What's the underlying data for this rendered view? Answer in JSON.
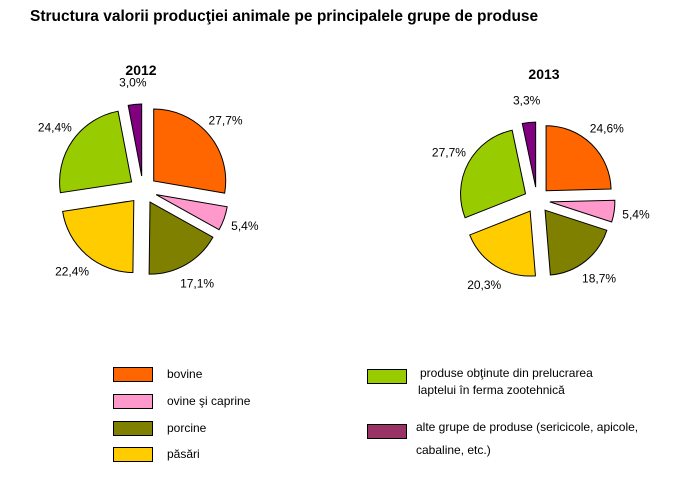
{
  "chart_data": {
    "type": "pie",
    "title": "Structura valorii producţiei animale pe principalele grupe de produse",
    "categories": [
      "bovine",
      "ovine şi caprine",
      "porcine",
      "păsări",
      "produse obţinute din prelucrarea laptelui în ferma zootehnică",
      "alte grupe de produse (sericicole, apicole, cabaline, etc.)"
    ],
    "colors": [
      "#ff6600",
      "#ff99cc",
      "#808000",
      "#ffcc00",
      "#99cc00",
      "#800080"
    ],
    "legend_colors": [
      "#ff6600",
      "#ff99cc",
      "#808000",
      "#ffcc00",
      "#99cc00",
      "#993366"
    ],
    "pies": [
      {
        "title": "2012",
        "values": [
          27.7,
          5.4,
          17.1,
          22.4,
          24.4,
          3.0
        ],
        "labels": [
          "27,7%",
          "5,4%",
          "17,1%",
          "22,4%",
          "24,4%",
          "3,0%"
        ]
      },
      {
        "title": "2013",
        "values": [
          24.6,
          5.4,
          18.7,
          20.3,
          27.7,
          3.3
        ],
        "labels": [
          "24,6%",
          "5,4%",
          "18,7%",
          "20,3%",
          "27,7%",
          "3,3%"
        ]
      }
    ],
    "legend": {
      "items": [
        "bovine",
        "ovine şi caprine",
        "porcine",
        "păsări"
      ],
      "lapte_lines": [
        "produse obţinute din prelucrarea",
        "laptelui în ferma zootehnică"
      ],
      "alte_lines": [
        "alte grupe de produse (sericicole, apicole,",
        "cabaline, etc.)"
      ]
    }
  }
}
